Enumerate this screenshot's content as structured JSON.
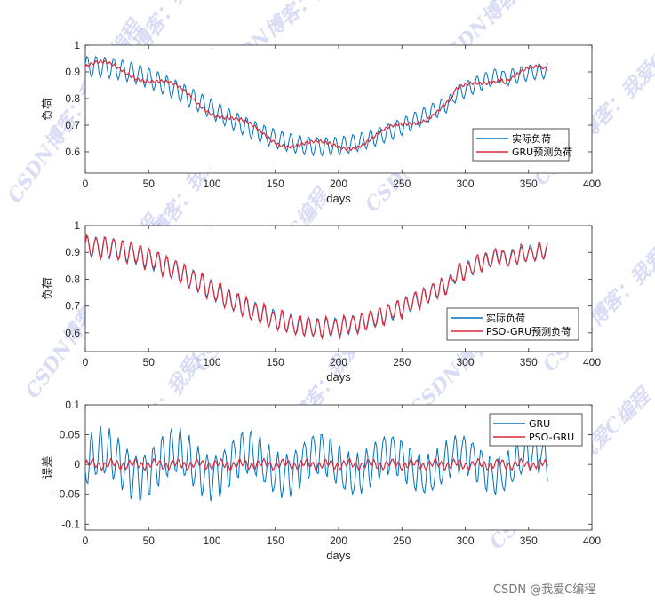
{
  "colors": {
    "actual": "#0072BD",
    "predicted": "#D9283A",
    "gru_err": "#0072BD",
    "pso_err": "#D9283A",
    "axis": "#262626"
  },
  "watermark": {
    "text": "CSDN博客：我爱C编程"
  },
  "credit": "CSDN @我爱C编程",
  "chart_data": [
    {
      "type": "line",
      "xlabel": "days",
      "ylabel": "负荷",
      "xlim": [
        0,
        400
      ],
      "ylim": [
        0.52,
        1.0
      ],
      "xticks": [
        "0",
        "50",
        "100",
        "150",
        "200",
        "250",
        "300",
        "350",
        "400"
      ],
      "yticks": [
        "0.6",
        "0.7",
        "0.8",
        "0.9",
        "1"
      ],
      "ytick_values": [
        0.6,
        0.7,
        0.8,
        0.9,
        1.0
      ],
      "legend_position": "bottom-right",
      "series": [
        {
          "name": "实际负荷",
          "color": "#0072BD"
        },
        {
          "name": "GRU预测负荷",
          "color": "#D9283A"
        }
      ]
    },
    {
      "type": "line",
      "xlabel": "days",
      "ylabel": "负荷",
      "xlim": [
        0,
        400
      ],
      "ylim": [
        0.53,
        1.0
      ],
      "xticks": [
        "0",
        "50",
        "100",
        "150",
        "200",
        "250",
        "300",
        "350",
        "400"
      ],
      "yticks": [
        "0.6",
        "0.7",
        "0.8",
        "0.9",
        "1"
      ],
      "ytick_values": [
        0.6,
        0.7,
        0.8,
        0.9,
        1.0
      ],
      "legend_position": "bottom-right",
      "series": [
        {
          "name": "实际负荷",
          "color": "#0072BD"
        },
        {
          "name": "PSO-GRU预测负荷",
          "color": "#D9283A"
        }
      ]
    },
    {
      "type": "line",
      "xlabel": "days",
      "ylabel": "误差",
      "xlim": [
        0,
        400
      ],
      "ylim": [
        -0.11,
        0.1
      ],
      "xticks": [
        "0",
        "50",
        "100",
        "150",
        "200",
        "250",
        "300",
        "350",
        "400"
      ],
      "yticks": [
        "-0.1",
        "-0.05",
        "0",
        "0.05",
        "0.1"
      ],
      "ytick_values": [
        -0.1,
        -0.05,
        0,
        0.05,
        0.1
      ],
      "legend_position": "top-right",
      "series": [
        {
          "name": "GRU",
          "color": "#0072BD"
        },
        {
          "name": "PSO-GRU",
          "color": "#D9283A"
        }
      ]
    }
  ]
}
